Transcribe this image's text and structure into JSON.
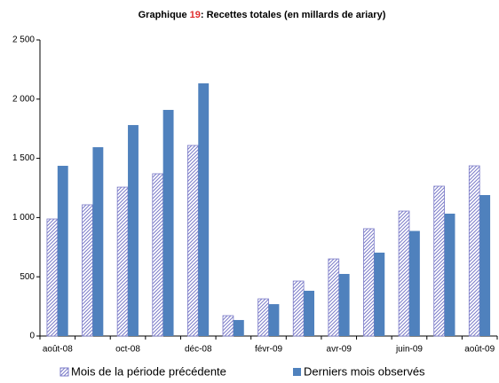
{
  "chart_data": {
    "type": "bar",
    "title": [
      "Graphique",
      "19",
      ": Recettes totales (en millards de ariary)"
    ],
    "categories": [
      "août-08",
      null,
      "oct-08",
      null,
      "déc-08",
      null,
      "févr-09",
      null,
      "avr-09",
      null,
      "juin-09",
      null,
      "août-09"
    ],
    "series": [
      {
        "name": "Mois de la période précédente",
        "color": "#7b7bc8",
        "pattern": "hatch",
        "values": [
          988,
          1108,
          1257,
          1370,
          1609,
          172,
          314,
          464,
          651,
          906,
          1055,
          1265,
          1437
        ]
      },
      {
        "name": "Derniers mois observés",
        "color": "#4f81bd",
        "values": [
          1437,
          1594,
          1781,
          1909,
          2133,
          135,
          269,
          382,
          524,
          704,
          887,
          1033,
          1190
        ]
      }
    ],
    "ylim": [
      0,
      2500
    ],
    "yticks": [
      0,
      500,
      {
        "value": 1000,
        "label": "1 000"
      },
      {
        "value": 1500,
        "label": "1 500"
      },
      {
        "value": 2000,
        "label": "2 000"
      },
      {
        "value": 2500,
        "label": "2 500"
      }
    ],
    "grid": false,
    "legend": "bottom"
  }
}
